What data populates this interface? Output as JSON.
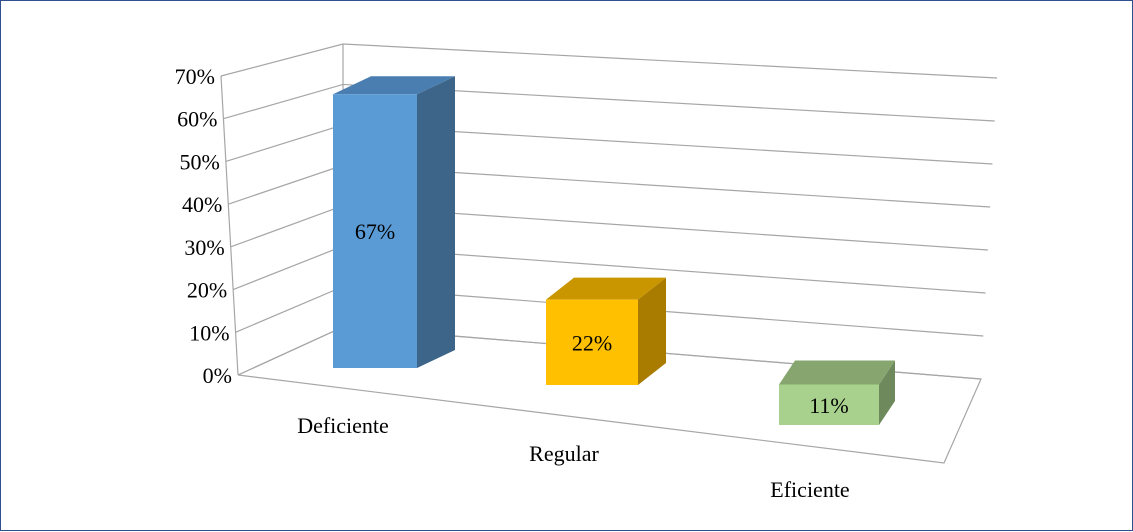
{
  "chart_data": {
    "type": "bar",
    "categories": [
      "Deficiente",
      "Regular",
      "Eficiente"
    ],
    "values": [
      67,
      22,
      11
    ],
    "data_labels": [
      "67%",
      "22%",
      "11%"
    ],
    "ylim": [
      0,
      70
    ],
    "yticks": [
      "0%",
      "10%",
      "20%",
      "30%",
      "40%",
      "50%",
      "60%",
      "70%"
    ],
    "grid": true,
    "legend": "none",
    "colors": [
      {
        "front": "#5b9bd5",
        "side": "#3d6489",
        "top": "#4a7eb0"
      },
      {
        "front": "#ffc000",
        "side": "#a97c00",
        "top": "#c99600"
      },
      {
        "front": "#a9d18e",
        "side": "#6e8a5c",
        "top": "#86a56f"
      }
    ]
  }
}
